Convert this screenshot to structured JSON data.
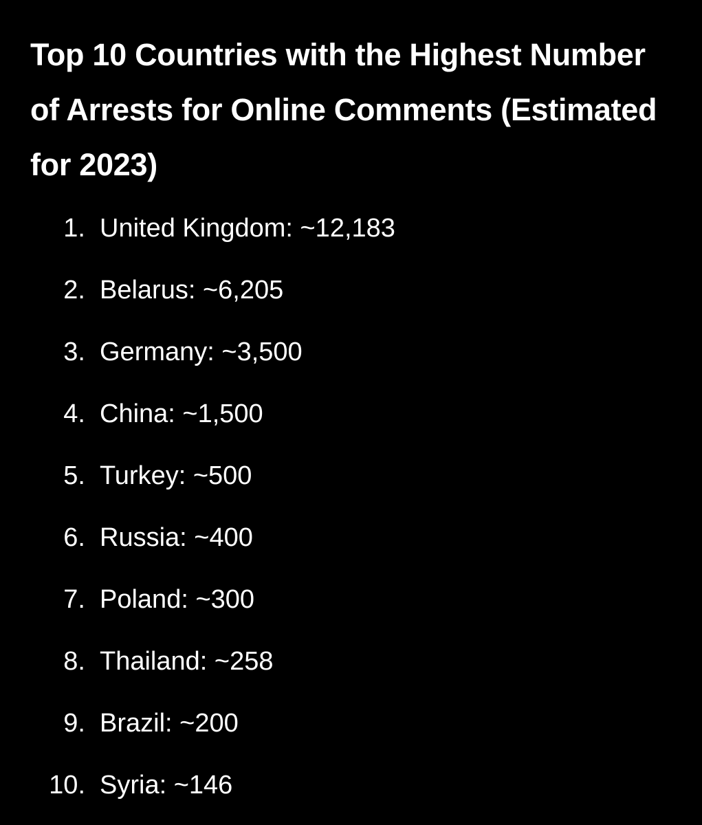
{
  "title": "Top 10 Countries with the Highest Number of Arrests for Online Comments (Estimated for 2023)",
  "list": [
    {
      "marker": "1.",
      "text": "United Kingdom: ~12,183"
    },
    {
      "marker": "2.",
      "text": "Belarus: ~6,205"
    },
    {
      "marker": "3.",
      "text": "Germany: ~3,500"
    },
    {
      "marker": "4.",
      "text": "China: ~1,500"
    },
    {
      "marker": "5.",
      "text": "Turkey: ~500"
    },
    {
      "marker": "6.",
      "text": "Russia: ~400"
    },
    {
      "marker": "7.",
      "text": "Poland: ~300"
    },
    {
      "marker": "8.",
      "text": "Thailand: ~258"
    },
    {
      "marker": "9.",
      "text": "Brazil: ~200"
    },
    {
      "marker": "10.",
      "text": "Syria: ~146"
    }
  ]
}
